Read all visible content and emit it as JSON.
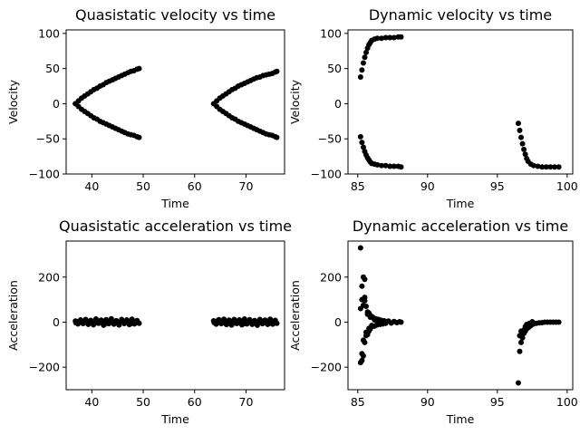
{
  "chart_data": [
    {
      "type": "scatter",
      "title": "Quasistatic velocity vs time",
      "xlabel": "Time",
      "ylabel": "Velocity",
      "xlim": [
        35,
        77.5
      ],
      "ylim": [
        -100,
        105
      ],
      "xticks": [
        40,
        50,
        60,
        70
      ],
      "yticks": [
        -100,
        -50,
        0,
        50,
        100
      ],
      "marker_color": "#000000",
      "series": [
        {
          "x": [
            36.8,
            37.4,
            38.0,
            38.6,
            39.2,
            39.8,
            40.4,
            41.0,
            41.6,
            42.2,
            42.8,
            43.4,
            44.0,
            44.6,
            45.2,
            45.8,
            46.4,
            47.0,
            47.6,
            48.2,
            48.8,
            49.2,
            36.8,
            37.4,
            38.0,
            38.6,
            39.2,
            39.8,
            40.4,
            41.0,
            41.6,
            42.2,
            42.8,
            43.4,
            44.0,
            44.6,
            45.2,
            45.8,
            46.4,
            47.0,
            47.6,
            48.2,
            48.8,
            49.2,
            63.7,
            64.3,
            64.9,
            65.5,
            66.1,
            66.7,
            67.3,
            67.9,
            68.5,
            69.1,
            69.7,
            70.3,
            70.9,
            71.5,
            72.1,
            72.7,
            73.3,
            73.9,
            74.5,
            75.1,
            75.7,
            76.0,
            63.7,
            64.3,
            64.9,
            65.5,
            66.1,
            66.7,
            67.3,
            67.9,
            68.5,
            69.1,
            69.7,
            70.3,
            70.9,
            71.5,
            72.1,
            72.7,
            73.3,
            73.9,
            74.5,
            75.1,
            75.7,
            76.0
          ],
          "y": [
            0,
            4,
            8,
            11,
            14,
            17,
            20,
            22,
            25,
            27,
            30,
            32,
            34,
            36,
            38,
            40,
            42,
            44,
            46,
            47,
            49,
            50,
            0,
            -4,
            -8,
            -11,
            -14,
            -17,
            -20,
            -22,
            -25,
            -27,
            -29,
            -31,
            -33,
            -35,
            -37,
            -39,
            -41,
            -43,
            -44,
            -45,
            -47,
            -48,
            0,
            4,
            8,
            11,
            14,
            17,
            20,
            22,
            25,
            27,
            29,
            31,
            33,
            35,
            37,
            38,
            40,
            41,
            42,
            43,
            45,
            46,
            0,
            -4,
            -8,
            -11,
            -14,
            -17,
            -20,
            -22,
            -25,
            -27,
            -29,
            -31,
            -33,
            -35,
            -37,
            -39,
            -41,
            -43,
            -44,
            -45,
            -47,
            -48
          ]
        }
      ]
    },
    {
      "type": "scatter",
      "title": "Dynamic velocity vs time",
      "xlabel": "Time",
      "ylabel": "Velocity",
      "xlim": [
        84.3,
        100.4
      ],
      "ylim": [
        -100,
        105
      ],
      "xticks": [
        85,
        90,
        95,
        100
      ],
      "yticks": [
        -100,
        -50,
        0,
        50,
        100
      ],
      "marker_color": "#000000",
      "series": [
        {
          "x": [
            85.2,
            85.3,
            85.4,
            85.5,
            85.6,
            85.7,
            85.8,
            85.9,
            86.0,
            86.2,
            86.4,
            86.7,
            87.0,
            87.3,
            87.6,
            87.9,
            88.1,
            85.2,
            85.3,
            85.4,
            85.5,
            85.6,
            85.7,
            85.8,
            85.9,
            86.0,
            86.2,
            86.4,
            86.7,
            87.0,
            87.3,
            87.6,
            87.9,
            88.1,
            96.5,
            96.6,
            96.7,
            96.8,
            96.9,
            97.0,
            97.1,
            97.2,
            97.4,
            97.6,
            97.9,
            98.2,
            98.5,
            98.8,
            99.1,
            99.4
          ],
          "y": [
            38,
            48,
            58,
            66,
            73,
            79,
            84,
            87,
            90,
            92,
            93,
            93,
            94,
            94,
            94,
            95,
            95,
            -47,
            -55,
            -62,
            -68,
            -73,
            -77,
            -80,
            -83,
            -85,
            -86,
            -87,
            -88,
            -88,
            -89,
            -89,
            -89,
            -90,
            -28,
            -38,
            -48,
            -57,
            -65,
            -72,
            -78,
            -82,
            -86,
            -88,
            -89,
            -90,
            -90,
            -90,
            -90,
            -90
          ]
        }
      ]
    },
    {
      "type": "scatter",
      "title": "Quasistatic acceleration vs time",
      "xlabel": "Time",
      "ylabel": "Acceleration",
      "xlim": [
        35,
        77.5
      ],
      "ylim": [
        -300,
        360
      ],
      "xticks": [
        40,
        50,
        60,
        70
      ],
      "yticks": [
        -200,
        0,
        200
      ],
      "marker_color": "#000000",
      "series": [
        {
          "x": [
            36.8,
            37.3,
            37.8,
            38.3,
            38.8,
            39.3,
            39.8,
            40.3,
            40.8,
            41.3,
            41.8,
            42.3,
            42.8,
            43.3,
            43.8,
            44.3,
            44.8,
            45.3,
            45.8,
            46.3,
            46.8,
            47.3,
            47.8,
            48.3,
            48.8,
            49.2,
            36.9,
            37.5,
            38.1,
            38.7,
            39.3,
            39.9,
            40.5,
            41.1,
            41.7,
            42.3,
            42.9,
            43.5,
            44.1,
            44.7,
            45.3,
            45.9,
            46.5,
            47.1,
            47.7,
            48.3,
            48.9,
            63.7,
            64.2,
            64.7,
            65.2,
            65.7,
            66.2,
            66.7,
            67.2,
            67.7,
            68.2,
            68.7,
            69.2,
            69.7,
            70.2,
            70.7,
            71.2,
            71.7,
            72.2,
            72.7,
            73.2,
            73.7,
            74.2,
            74.7,
            75.2,
            75.7,
            76.0,
            63.8,
            64.4,
            65.0,
            65.6,
            66.2,
            66.8,
            67.4,
            68.0,
            68.6,
            69.2,
            69.8,
            70.4,
            71.0,
            71.6,
            72.2,
            72.8,
            73.4,
            74.0,
            74.6,
            75.2,
            75.8
          ],
          "y": [
            5,
            -8,
            10,
            -6,
            12,
            -10,
            8,
            -12,
            14,
            -5,
            9,
            -14,
            11,
            -7,
            15,
            -9,
            6,
            -13,
            12,
            -6,
            10,
            -11,
            13,
            -8,
            7,
            -5,
            -3,
            4,
            -2,
            6,
            -4,
            2,
            -6,
            5,
            -3,
            4,
            -5,
            3,
            -2,
            6,
            -4,
            5,
            -3,
            2,
            -6,
            4,
            -2,
            6,
            -9,
            11,
            -7,
            13,
            -11,
            9,
            -13,
            12,
            -6,
            10,
            -12,
            14,
            -8,
            11,
            -10,
            7,
            -14,
            12,
            -7,
            9,
            -10,
            13,
            -9,
            8,
            -5,
            -2,
            5,
            -3,
            6,
            -4,
            3,
            -5,
            4,
            -2,
            5,
            -6,
            3,
            -3,
            6,
            -4,
            5,
            -2,
            3,
            -5,
            4,
            -3
          ]
        }
      ]
    },
    {
      "type": "scatter",
      "title": "Dynamic acceleration vs time",
      "xlabel": "Time",
      "ylabel": "Acceleration",
      "xlim": [
        84.3,
        100.4
      ],
      "ylim": [
        -300,
        360
      ],
      "xticks": [
        85,
        90,
        95,
        100
      ],
      "yticks": [
        -200,
        0,
        200
      ],
      "marker_color": "#000000",
      "series": [
        {
          "x": [
            85.2,
            85.2,
            85.3,
            85.3,
            85.3,
            85.4,
            85.4,
            85.4,
            85.5,
            85.5,
            85.5,
            85.6,
            85.6,
            85.7,
            85.7,
            85.8,
            85.8,
            85.9,
            85.9,
            86.0,
            86.0,
            86.1,
            86.2,
            86.3,
            86.4,
            86.5,
            86.6,
            86.7,
            86.8,
            86.9,
            87.0,
            87.2,
            87.4,
            87.6,
            87.8,
            88.0,
            88.1,
            85.2,
            85.3,
            85.4,
            85.5,
            85.6,
            85.7,
            85.8,
            85.9,
            86.0,
            86.2,
            86.4,
            86.6,
            96.5,
            96.6,
            96.7,
            96.8,
            96.9,
            97.0,
            97.1,
            97.2,
            97.3,
            97.4,
            97.5,
            97.6,
            97.8,
            98.0,
            98.2,
            98.4,
            98.6,
            98.8,
            99.0,
            99.2,
            99.4,
            96.6,
            96.7,
            96.8,
            96.9,
            97.0,
            97.1,
            97.3,
            97.5
          ],
          "y": [
            330,
            60,
            -170,
            100,
            -140,
            200,
            75,
            -150,
            190,
            110,
            -90,
            70,
            -60,
            45,
            -55,
            40,
            -40,
            30,
            -30,
            25,
            -20,
            20,
            -18,
            15,
            -12,
            12,
            -10,
            8,
            -8,
            6,
            -5,
            5,
            -4,
            3,
            -2,
            2,
            0,
            -180,
            160,
            -80,
            95,
            -45,
            35,
            -28,
            22,
            -15,
            10,
            -8,
            5,
            -270,
            -130,
            -90,
            -70,
            -50,
            -40,
            -30,
            -25,
            -20,
            -15,
            -10,
            -8,
            -5,
            -3,
            -2,
            0,
            0,
            0,
            0,
            0,
            0,
            -60,
            -40,
            -55,
            -35,
            -20,
            -10,
            -5,
            2
          ]
        }
      ]
    }
  ]
}
